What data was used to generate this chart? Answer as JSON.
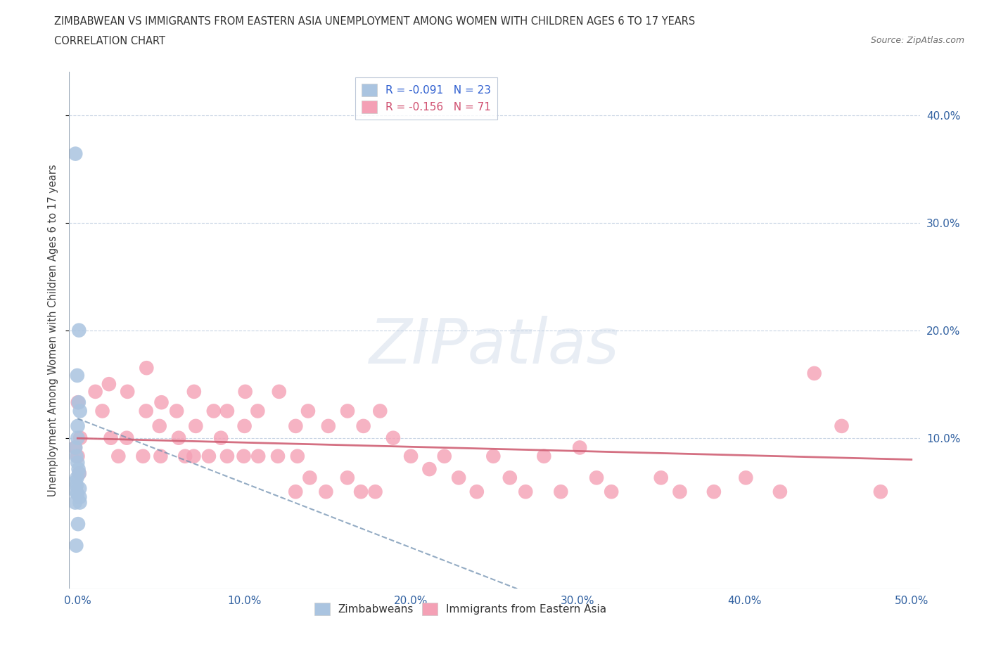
{
  "title_line1": "ZIMBABWEAN VS IMMIGRANTS FROM EASTERN ASIA UNEMPLOYMENT AMONG WOMEN WITH CHILDREN AGES 6 TO 17 YEARS",
  "title_line2": "CORRELATION CHART",
  "source": "Source: ZipAtlas.com",
  "ylabel": "Unemployment Among Women with Children Ages 6 to 17 years",
  "xlim": [
    -0.005,
    0.505
  ],
  "ylim": [
    -0.04,
    0.44
  ],
  "ytick_vals": [
    0.1,
    0.2,
    0.3,
    0.4
  ],
  "ytick_labels_right": [
    "10.0%",
    "20.0%",
    "30.0%",
    "40.0%"
  ],
  "xtick_vals": [
    0.0,
    0.1,
    0.2,
    0.3,
    0.4,
    0.5
  ],
  "xtick_labels": [
    "0.0%",
    "10.0%",
    "20.0%",
    "30.0%",
    "40.0%",
    "50.0%"
  ],
  "zimbabwean_color": "#aac4e0",
  "eastern_asia_color": "#f4a0b5",
  "trend_zim_color": "#7090b0",
  "trend_ea_color": "#d06075",
  "R_zimbabwean": -0.091,
  "N_zimbabwean": 23,
  "R_eastern_asia": -0.156,
  "N_eastern_asia": 71,
  "watermark": "ZIPatlas",
  "bg_color": "#ffffff",
  "grid_color": "#c8d4e4",
  "legend_edge_color": "#b0bcd0",
  "zim_x": [
    0.0,
    0.0,
    0.0,
    0.0,
    0.0,
    0.0,
    0.0,
    0.0,
    0.0,
    0.0,
    0.0,
    0.0,
    0.0,
    0.0,
    0.0,
    0.0,
    0.0,
    0.0,
    0.0,
    0.0,
    0.0,
    0.0,
    0.0
  ],
  "zim_y": [
    0.364,
    0.2,
    0.158,
    0.133,
    0.125,
    0.111,
    0.1,
    0.091,
    0.083,
    0.077,
    0.071,
    0.067,
    0.063,
    0.059,
    0.056,
    0.053,
    0.05,
    0.048,
    0.045,
    0.04,
    0.02,
    0.04,
    0.0
  ],
  "ea_x": [
    0.0,
    0.0,
    0.0,
    0.0,
    0.0,
    0.01,
    0.015,
    0.02,
    0.02,
    0.025,
    0.03,
    0.03,
    0.04,
    0.04,
    0.04,
    0.05,
    0.05,
    0.05,
    0.06,
    0.06,
    0.065,
    0.07,
    0.07,
    0.07,
    0.08,
    0.08,
    0.085,
    0.09,
    0.09,
    0.1,
    0.1,
    0.1,
    0.11,
    0.11,
    0.12,
    0.12,
    0.13,
    0.13,
    0.13,
    0.14,
    0.14,
    0.15,
    0.15,
    0.16,
    0.16,
    0.17,
    0.17,
    0.18,
    0.18,
    0.19,
    0.2,
    0.21,
    0.22,
    0.23,
    0.24,
    0.25,
    0.26,
    0.27,
    0.28,
    0.29,
    0.3,
    0.31,
    0.32,
    0.35,
    0.36,
    0.38,
    0.4,
    0.42,
    0.44,
    0.46,
    0.48
  ],
  "ea_y": [
    0.133,
    0.1,
    0.091,
    0.083,
    0.067,
    0.143,
    0.125,
    0.15,
    0.1,
    0.083,
    0.143,
    0.1,
    0.165,
    0.125,
    0.083,
    0.133,
    0.111,
    0.083,
    0.125,
    0.1,
    0.083,
    0.143,
    0.111,
    0.083,
    0.125,
    0.083,
    0.1,
    0.125,
    0.083,
    0.143,
    0.111,
    0.083,
    0.125,
    0.083,
    0.143,
    0.083,
    0.111,
    0.083,
    0.05,
    0.125,
    0.063,
    0.111,
    0.05,
    0.125,
    0.063,
    0.111,
    0.05,
    0.125,
    0.05,
    0.1,
    0.083,
    0.071,
    0.083,
    0.063,
    0.05,
    0.083,
    0.063,
    0.05,
    0.083,
    0.05,
    0.091,
    0.063,
    0.05,
    0.063,
    0.05,
    0.05,
    0.063,
    0.05,
    0.16,
    0.111,
    0.05
  ]
}
